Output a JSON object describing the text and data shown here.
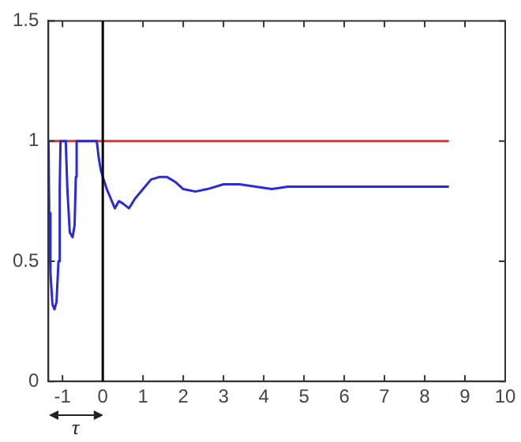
{
  "chart_data": {
    "type": "line",
    "xlim": [
      -1.35,
      10
    ],
    "xticks": [
      -1,
      0,
      1,
      2,
      3,
      4,
      5,
      6,
      7,
      8,
      9,
      10
    ],
    "ylim": [
      0,
      1.5
    ],
    "yticks": [
      0,
      0.5,
      1,
      1.5
    ],
    "series": [
      {
        "color": "#2a2ad8",
        "x": [
          -1.35,
          -1.33,
          -1.3,
          -1.25,
          -1.2,
          -1.15,
          -1.1,
          -1.07,
          -1.05,
          -1.0,
          -0.92,
          -0.88,
          -0.82,
          -0.75,
          -0.7,
          -0.67,
          -0.65,
          -0.5,
          -0.2,
          -0.15,
          -0.1,
          -0.05,
          0,
          0.1,
          0.2,
          0.3,
          0.4,
          0.5,
          0.65,
          0.8,
          1.0,
          1.2,
          1.4,
          1.6,
          1.8,
          2.0,
          2.3,
          2.6,
          3.0,
          3.4,
          3.8,
          4.2,
          4.6,
          5.0,
          6.0,
          7.0,
          8.0,
          8.6
        ],
        "values": [
          1,
          0.7,
          0.45,
          0.32,
          0.3,
          0.33,
          0.5,
          0.8,
          1,
          1,
          1,
          0.8,
          0.62,
          0.6,
          0.65,
          0.85,
          1,
          1,
          1,
          1,
          0.93,
          0.88,
          0.85,
          0.8,
          0.76,
          0.72,
          0.75,
          0.74,
          0.72,
          0.76,
          0.8,
          0.84,
          0.85,
          0.85,
          0.83,
          0.8,
          0.79,
          0.8,
          0.82,
          0.82,
          0.81,
          0.8,
          0.81,
          0.81,
          0.81,
          0.81,
          0.81,
          0.81
        ]
      },
      {
        "color": "#e0303a",
        "x": [
          -1.35,
          8.6
        ],
        "values": [
          1,
          1
        ]
      }
    ],
    "ref_lines": [
      {
        "axis": "x",
        "value": 0,
        "color": "#000000"
      }
    ],
    "annotations": [
      "τ"
    ]
  }
}
